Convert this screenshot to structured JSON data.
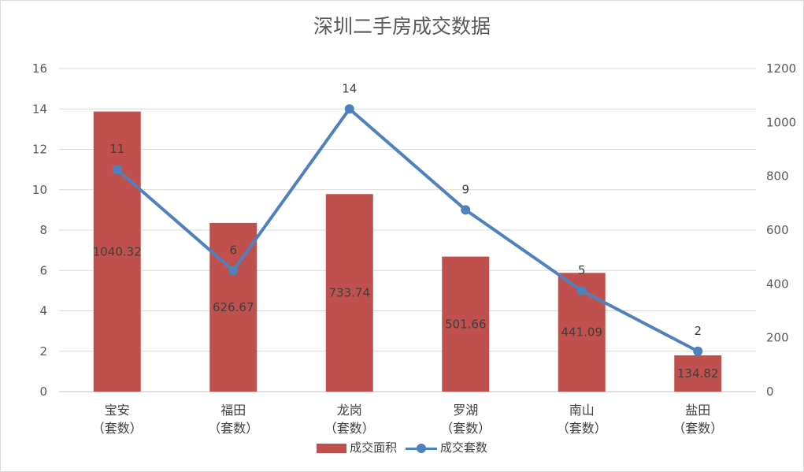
{
  "chart_data": {
    "type": "bar",
    "title": "深圳二手房成交数据",
    "categories": [
      {
        "name": "宝安",
        "sub": "（套数）"
      },
      {
        "name": "福田",
        "sub": "（套数）"
      },
      {
        "name": "龙岗",
        "sub": "（套数）"
      },
      {
        "name": "罗湖",
        "sub": "（套数）"
      },
      {
        "name": "南山",
        "sub": "（套数）"
      },
      {
        "name": "盐田",
        "sub": "（套数）"
      }
    ],
    "left_axis": {
      "min": 0,
      "max": 16,
      "step": 2,
      "ticks": [
        "0",
        "2",
        "4",
        "6",
        "8",
        "10",
        "12",
        "14",
        "16"
      ]
    },
    "right_axis": {
      "min": 0,
      "max": 1200,
      "step": 200,
      "ticks": [
        "0",
        "200",
        "400",
        "600",
        "800",
        "1000",
        "1200"
      ]
    },
    "series": [
      {
        "name": "成交面积",
        "type": "bar",
        "axis": "right",
        "color": "#c0504d",
        "values": [
          1040.32,
          626.67,
          733.74,
          501.66,
          441.09,
          134.82
        ],
        "labels": [
          "1040.32",
          "626.67",
          "733.74",
          "501.66",
          "441.09",
          "134.82"
        ]
      },
      {
        "name": "成交套数",
        "type": "line",
        "axis": "left",
        "color": "#4f81bd",
        "values": [
          11,
          6,
          14,
          9,
          5,
          2
        ],
        "labels": [
          "11",
          "6",
          "14",
          "9",
          "5",
          "2"
        ]
      }
    ],
    "legend_position": "bottom",
    "grid": true
  }
}
